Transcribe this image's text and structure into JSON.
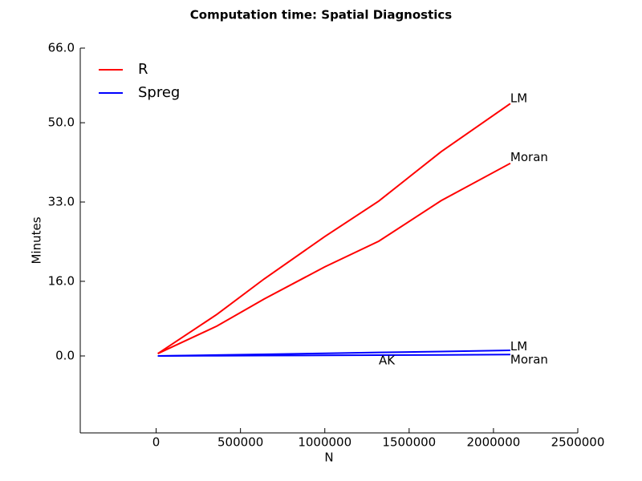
{
  "chart_data": {
    "type": "line",
    "title": "Computation time: Spatial Diagnostics",
    "x_label": "N",
    "y_label": "Minutes",
    "xlim": [
      -450000,
      2500000
    ],
    "ylim": [
      -16.5,
      66
    ],
    "xticks": [
      0,
      500000,
      1000000,
      1500000,
      2000000,
      2500000
    ],
    "yticks": [
      {
        "value": 0,
        "label": "0.0"
      },
      {
        "value": 16,
        "label": "16.0"
      },
      {
        "value": 33,
        "label": "33.0"
      },
      {
        "value": 50,
        "label": "50.0"
      },
      {
        "value": 66,
        "label": "66.0"
      }
    ],
    "legend": {
      "position": "upper-left",
      "entries": [
        {
          "name": "R",
          "color": "#ff0000"
        },
        {
          "name": "Spreg",
          "color": "#0000ff"
        }
      ]
    },
    "x": [
      10000,
      360000,
      640000,
      1000000,
      1320000,
      1690000,
      2100000
    ],
    "series": [
      {
        "group": 0,
        "values": [
          0.5,
          8.9,
          16.5,
          25.6,
          33.2,
          43.8,
          54.1
        ]
      },
      {
        "group": 0,
        "values": [
          0.5,
          6.4,
          12.2,
          19.1,
          24.6,
          33.3,
          41.3
        ]
      },
      {
        "group": 1,
        "values": [
          0,
          0.2,
          0.35,
          0.55,
          0.75,
          0.95,
          1.2
        ]
      },
      {
        "group": 1,
        "values": [
          0,
          0.05,
          0.08,
          0.12,
          0.17,
          0.22,
          0.3
        ]
      }
    ],
    "annotations": [
      {
        "text": "LM",
        "x": 2100000,
        "y": 55.2
      },
      {
        "text": "Moran",
        "x": 2100000,
        "y": 42.5
      },
      {
        "text": "LM",
        "x": 2100000,
        "y": 2.0
      },
      {
        "text": "Moran",
        "x": 2100000,
        "y": -0.9
      },
      {
        "text": "AK",
        "x": 1320000,
        "y": -1.0
      }
    ]
  }
}
